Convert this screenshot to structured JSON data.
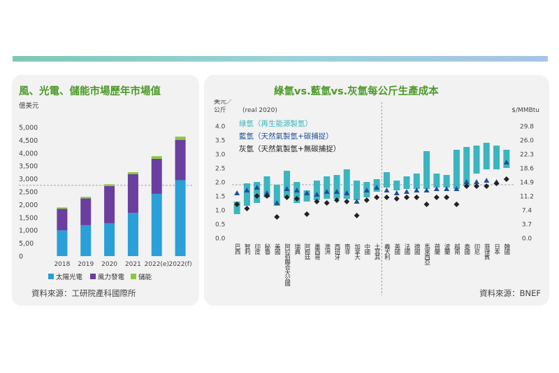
{
  "left_panel": {
    "title": "風、光電、儲能市場歷年市場值",
    "source": "資料來源：工研院產科國際所"
  },
  "right_panel": {
    "title": "綠氫vs.藍氫vs.灰氫每公斤生產成本",
    "source": "資料來源：BNEF"
  },
  "colors": {
    "solar": "#2a9fd8",
    "wind": "#6a3fa0",
    "storage": "#8dc63f",
    "green_h2": "#3bb5bf",
    "blue_h2": "#1f4e9a",
    "grey_h2": "#222222",
    "green_text": "#4c9a2a"
  },
  "chart_data": [
    {
      "type": "bar",
      "stacked": true,
      "ylabel": "億美元",
      "ylim": [
        0,
        5000
      ],
      "yticks": [
        "0",
        "5,00",
        "1,000",
        "1,500",
        "2,000",
        "2,500",
        "3,000",
        "3,500",
        "4,000",
        "4,500",
        "5,000"
      ],
      "categories": [
        "2018",
        "2019",
        "2020",
        "2021",
        "2022(e)",
        "2022(f)"
      ],
      "series": [
        {
          "name": "太陽光電",
          "color": "#2a9fd8",
          "values": [
            1000,
            1200,
            1280,
            1680,
            2420,
            2950
          ]
        },
        {
          "name": "風力發電",
          "color": "#6a3fa0",
          "values": [
            840,
            1040,
            1440,
            1500,
            1360,
            1560
          ]
        },
        {
          "name": "儲能",
          "color": "#8dc63f",
          "values": [
            50,
            60,
            70,
            80,
            100,
            130
          ]
        }
      ],
      "grid": false,
      "legend_position": "bottom"
    },
    {
      "type": "range",
      "unit_left": "美元／公斤",
      "note": "(real 2020)",
      "unit_right": "$/MMBtu",
      "ylim": [
        0,
        4.0
      ],
      "left_ticks": [
        "0.0",
        "0.5",
        "1.0",
        "1.5",
        "2.0",
        "2.5",
        "3.0",
        "3.5",
        "4.0"
      ],
      "right_ticks": [
        "0.0",
        "3.7",
        "7.4",
        "11.2",
        "14.9",
        "18.6",
        "22.3",
        "26.0",
        "29.8"
      ],
      "legend": [
        {
          "name": "綠氫（再生能源製氫）",
          "color": "#3bb5bf"
        },
        {
          "name": "藍氫（天然氣製氫+碳捕捉）",
          "color": "#1f4e9a"
        },
        {
          "name": "灰氫（天然氣製氫+無碳捕捉）",
          "color": "#222222"
        }
      ],
      "categories": [
        "巴西",
        "智利",
        "印度",
        "秘魯",
        "美國",
        "阿拉伯聯合大公國",
        "瑞典",
        "阿根廷",
        "墨西哥",
        "澳洲",
        "西班牙",
        "南非",
        "加拿大",
        "中國",
        "土耳其",
        "義大利",
        "英國",
        "法國",
        "德國",
        "馬來西亞",
        "荷蘭",
        "波蘭",
        "越南",
        "泰國",
        "印尼",
        "菲律賓",
        "日本",
        "韓國"
      ],
      "green_low": [
        0.85,
        1.15,
        1.25,
        1.45,
        1.15,
        1.45,
        1.25,
        1.3,
        1.35,
        1.4,
        1.4,
        1.4,
        1.35,
        1.45,
        1.65,
        1.8,
        1.7,
        1.75,
        1.75,
        1.75,
        1.8,
        1.8,
        1.75,
        1.85,
        2.3,
        2.45,
        2.45,
        2.5
      ],
      "green_high": [
        1.3,
        1.95,
        2.0,
        2.2,
        1.9,
        2.4,
        2.0,
        1.7,
        2.05,
        2.2,
        2.25,
        2.45,
        2.05,
        2.0,
        2.1,
        2.35,
        2.05,
        2.2,
        2.3,
        3.1,
        2.3,
        2.25,
        3.15,
        3.25,
        3.3,
        3.4,
        3.3,
        3.15
      ],
      "blue": [
        1.6,
        1.7,
        1.8,
        1.6,
        1.25,
        1.75,
        1.7,
        1.6,
        1.55,
        1.65,
        1.65,
        1.6,
        1.3,
        1.7,
        1.8,
        1.7,
        1.6,
        1.65,
        1.7,
        1.7,
        1.75,
        1.75,
        1.75,
        2.0,
        2.0,
        2.05,
        2.0,
        2.7
      ],
      "grey": [
        1.2,
        1.05,
        1.5,
        1.5,
        0.75,
        1.45,
        1.4,
        0.85,
        1.3,
        1.25,
        1.35,
        1.3,
        0.8,
        1.35,
        1.45,
        1.45,
        1.4,
        1.45,
        1.45,
        1.2,
        1.45,
        1.45,
        1.2,
        1.85,
        1.85,
        1.85,
        1.95,
        2.1
      ],
      "divider_after": "土耳其",
      "reference_line": 1.9,
      "grid": false,
      "legend_position": "top-left"
    }
  ]
}
